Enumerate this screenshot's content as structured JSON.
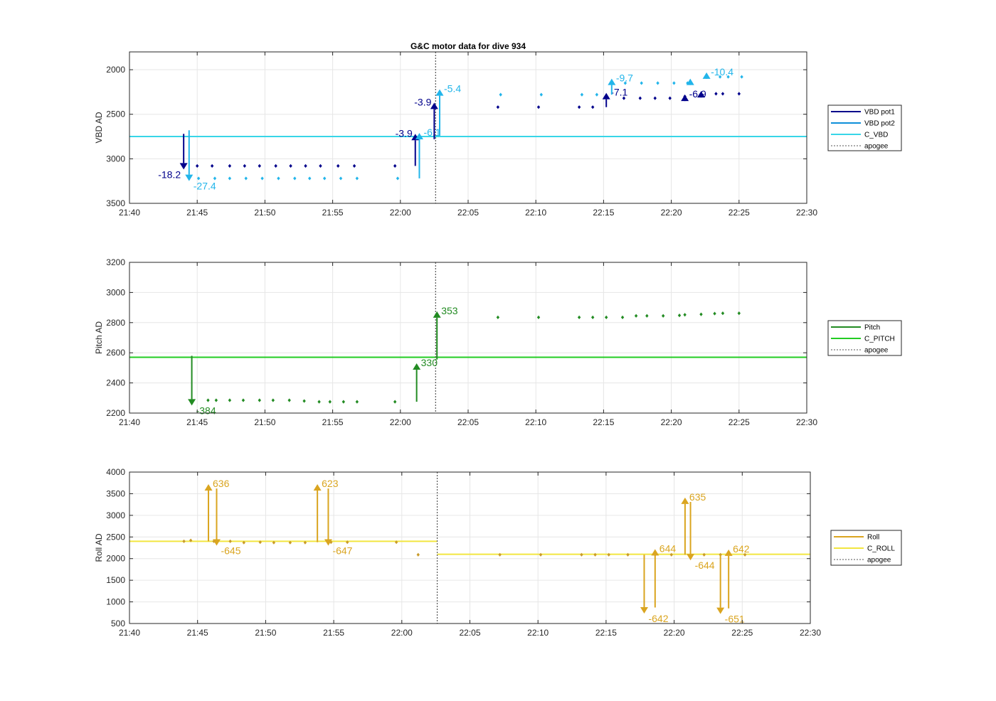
{
  "figure_title": "G&C motor data for dive 934",
  "chart_data": [
    {
      "type": "scatter",
      "name": "vbd",
      "ylabel": "VBD AD",
      "xlim": [
        "21:40",
        "22:30"
      ],
      "ylim": [
        3500,
        1800
      ],
      "y_reversed": true,
      "xticks": [
        "21:40",
        "21:45",
        "21:50",
        "21:55",
        "22:00",
        "22:05",
        "22:10",
        "22:15",
        "22:20",
        "22:25",
        "22:30"
      ],
      "yticks": [
        "2000",
        "2500",
        "3000",
        "3500"
      ],
      "grid": true,
      "legend_position": "right",
      "legend": [
        {
          "label": "VBD pot1",
          "color": "#00008B",
          "style": "solid"
        },
        {
          "label": "VBD pot2",
          "color": "#0E8FD9",
          "style": "solid"
        },
        {
          "label": "C_VBD",
          "color": "#38D6E8",
          "style": "solid"
        },
        {
          "label": "apogee",
          "color": "#555555",
          "style": "dotted"
        }
      ],
      "hlines": [
        {
          "name": "C_VBD",
          "segments": [
            {
              "x": [
                "21:40",
                "22:30"
              ],
              "y": 2750
            }
          ],
          "color": "#38D6E8"
        }
      ],
      "apogee": "22:02.6",
      "series": [
        {
          "name": "VBD pot1",
          "color": "#00008B",
          "x": [
            "21:45.0",
            "21:46.1",
            "21:47.4",
            "21:48.5",
            "21:49.6",
            "21:50.8",
            "21:51.9",
            "21:53.0",
            "21:54.1",
            "21:55.4",
            "21:56.6",
            "21:59.6",
            "22:07.2",
            "22:10.2",
            "22:13.2",
            "22:14.2",
            "22:16.5",
            "22:17.7",
            "22:18.8",
            "22:19.9",
            "22:21.0",
            "22:22.2",
            "22:23.3",
            "22:23.8",
            "22:25.0"
          ],
          "y": [
            3080,
            3080,
            3080,
            3080,
            3080,
            3080,
            3080,
            3080,
            3080,
            3080,
            3080,
            3080,
            2420,
            2420,
            2420,
            2420,
            2320,
            2320,
            2320,
            2320,
            2300,
            2290,
            2270,
            2270,
            2270
          ]
        },
        {
          "name": "VBD pot2",
          "color": "#22B5EA",
          "x": [
            "21:45.1",
            "21:46.3",
            "21:47.4",
            "21:48.6",
            "21:49.8",
            "21:51.0",
            "21:52.2",
            "21:53.3",
            "21:54.4",
            "21:55.6",
            "21:56.8",
            "21:59.8",
            "22:07.4",
            "22:10.4",
            "22:13.4",
            "22:14.5",
            "22:16.6",
            "22:17.8",
            "22:19.0",
            "22:20.2",
            "22:21.2",
            "22:23.6",
            "22:24.2",
            "22:25.2"
          ],
          "y": [
            3220,
            3220,
            3220,
            3220,
            3220,
            3220,
            3220,
            3220,
            3220,
            3220,
            3220,
            3220,
            2280,
            2280,
            2280,
            2280,
            2150,
            2150,
            2150,
            2150,
            2150,
            2080,
            2080,
            2080
          ]
        }
      ],
      "arrows": [
        {
          "x": "21:44.0",
          "from": 2720,
          "to": 3120,
          "label": "-18.2",
          "color": "#00008B"
        },
        {
          "x": "21:44.4",
          "from": 2680,
          "to": 3250,
          "label": "-27.4",
          "color": "#22B5EA"
        },
        {
          "x": "22:01.1",
          "from": 3080,
          "to": 2720,
          "label": "-3.9",
          "color": "#00008B"
        },
        {
          "x": "22:01.4",
          "from": 3220,
          "to": 2710,
          "label": "-6.1",
          "color": "#22B5EA"
        },
        {
          "x": "22:02.5",
          "from": 2780,
          "to": 2370,
          "label": "-3.9",
          "color": "#00008B"
        },
        {
          "x": "22:02.9",
          "from": 2740,
          "to": 2220,
          "label": "-5.4",
          "color": "#22B5EA"
        },
        {
          "x": "22:15.2",
          "from": 2420,
          "to": 2260,
          "label": "-7.1",
          "color": "#00008B"
        },
        {
          "x": "22:15.6",
          "from": 2280,
          "to": 2100,
          "label": "-9.7",
          "color": "#22B5EA"
        },
        {
          "x": "22:21.0",
          "from": 2330,
          "to": 2280,
          "label": "-6.9",
          "color": "#00008B"
        },
        {
          "x": "22:21.4",
          "from": 2150,
          "to": 2100,
          "label": "",
          "color": "#22B5EA"
        },
        {
          "x": "22:22.2",
          "from": 2290,
          "to": 2240,
          "label": "",
          "color": "#00008B"
        },
        {
          "x": "22:22.6",
          "from": 2090,
          "to": 2030,
          "label": "-10.4",
          "color": "#22B5EA"
        }
      ]
    },
    {
      "type": "scatter",
      "name": "pitch",
      "ylabel": "Pitch AD",
      "xlim": [
        "21:40",
        "22:30"
      ],
      "ylim": [
        2200,
        3200
      ],
      "xticks": [
        "21:40",
        "21:45",
        "21:50",
        "21:55",
        "22:00",
        "22:05",
        "22:10",
        "22:15",
        "22:20",
        "22:25",
        "22:30"
      ],
      "yticks": [
        "2200",
        "2400",
        "2600",
        "2800",
        "3000",
        "3200"
      ],
      "grid": true,
      "legend_position": "right",
      "legend": [
        {
          "label": "Pitch",
          "color": "#228B22",
          "style": "solid"
        },
        {
          "label": "C_PITCH",
          "color": "#22CC22",
          "style": "solid"
        },
        {
          "label": "apogee",
          "color": "#555555",
          "style": "dotted"
        }
      ],
      "hlines": [
        {
          "name": "C_PITCH",
          "segments": [
            {
              "x": [
                "21:40",
                "22:30"
              ],
              "y": 2570
            }
          ],
          "color": "#22CC22"
        }
      ],
      "apogee": "22:02.6",
      "series": [
        {
          "name": "Pitch",
          "color": "#228B22",
          "x": [
            "21:45.8",
            "21:46.4",
            "21:47.4",
            "21:48.4",
            "21:49.6",
            "21:50.6",
            "21:51.8",
            "21:52.9",
            "21:54.0",
            "21:54.8",
            "21:55.8",
            "21:56.8",
            "21:59.6",
            "22:07.2",
            "22:10.2",
            "22:13.2",
            "22:14.2",
            "22:15.2",
            "22:16.4",
            "22:17.4",
            "22:18.2",
            "22:19.4",
            "22:20.6",
            "22:21.0",
            "22:22.2",
            "22:23.2",
            "22:23.8",
            "22:25.0"
          ],
          "y": [
            2285,
            2285,
            2285,
            2285,
            2285,
            2285,
            2285,
            2280,
            2275,
            2275,
            2275,
            2275,
            2275,
            2835,
            2835,
            2835,
            2835,
            2835,
            2835,
            2845,
            2845,
            2845,
            2848,
            2852,
            2855,
            2860,
            2862,
            2862
          ]
        }
      ],
      "arrows": [
        {
          "x": "21:44.6",
          "from": 2580,
          "to": 2250,
          "label": "-384",
          "color": "#228B22"
        },
        {
          "x": "22:01.2",
          "from": 2275,
          "to": 2530,
          "label": "330",
          "color": "#228B22"
        },
        {
          "x": "22:02.7",
          "from": 2555,
          "to": 2875,
          "label": "353",
          "color": "#228B22"
        }
      ]
    },
    {
      "type": "scatter",
      "name": "roll",
      "ylabel": "Roll AD",
      "xlim": [
        "21:40",
        "22:30"
      ],
      "ylim": [
        500,
        4000
      ],
      "xticks": [
        "21:40",
        "21:45",
        "21:50",
        "21:55",
        "22:00",
        "22:05",
        "22:10",
        "22:15",
        "22:20",
        "22:25",
        "22:30"
      ],
      "yticks": [
        "500",
        "1000",
        "1500",
        "2000",
        "2500",
        "3000",
        "3500",
        "4000"
      ],
      "grid": true,
      "legend_position": "right",
      "legend": [
        {
          "label": "Roll",
          "color": "#DAA520",
          "style": "solid"
        },
        {
          "label": "C_ROLL",
          "color": "#F2E640",
          "style": "solid"
        },
        {
          "label": "apogee",
          "color": "#555555",
          "style": "dotted"
        }
      ],
      "hlines": [
        {
          "name": "C_ROLL",
          "segments": [
            {
              "x": [
                "21:40",
                "22:02.6"
              ],
              "y": 2400
            },
            {
              "x": [
                "22:02.6",
                "22:30"
              ],
              "y": 2100
            }
          ],
          "color": "#F2E640"
        }
      ],
      "apogee": "22:02.6",
      "series": [
        {
          "name": "Roll",
          "color": "#C99B2A",
          "x": [
            "21:44.0",
            "21:44.5",
            "21:46.2",
            "21:47.4",
            "21:48.4",
            "21:49.6",
            "21:50.6",
            "21:51.8",
            "21:52.9",
            "21:54.8",
            "21:56.0",
            "21:59.6",
            "22:01.2",
            "22:07.2",
            "22:10.2",
            "22:13.2",
            "22:14.2",
            "22:15.2",
            "22:16.6",
            "22:18.6",
            "22:19.8",
            "22:22.2",
            "22:23.4",
            "22:25.2"
          ],
          "y": [
            2400,
            2420,
            2400,
            2400,
            2370,
            2380,
            2370,
            2370,
            2370,
            2380,
            2380,
            2380,
            2090,
            2090,
            2090,
            2090,
            2090,
            2090,
            2090,
            2090,
            2090,
            2090,
            2090,
            2090
          ]
        }
      ],
      "arrows": [
        {
          "x": "21:45.8",
          "from": 2400,
          "to": 3720,
          "label": "636",
          "color": "#DAA520"
        },
        {
          "x": "21:46.4",
          "from": 3620,
          "to": 2300,
          "label": "-645",
          "color": "#DAA520"
        },
        {
          "x": "21:53.8",
          "from": 2380,
          "to": 3720,
          "label": "623",
          "color": "#DAA520"
        },
        {
          "x": "21:54.6",
          "from": 3620,
          "to": 2300,
          "label": "-647",
          "color": "#DAA520"
        },
        {
          "x": "22:17.8",
          "from": 2090,
          "to": 730,
          "label": "-642",
          "color": "#DAA520"
        },
        {
          "x": "22:18.6",
          "from": 870,
          "to": 2220,
          "label": "644",
          "color": "#DAA520"
        },
        {
          "x": "22:20.8",
          "from": 2090,
          "to": 3410,
          "label": "635",
          "color": "#DAA520"
        },
        {
          "x": "22:21.2",
          "from": 3310,
          "to": 1960,
          "label": "-644",
          "color": "#DAA520"
        },
        {
          "x": "22:23.4",
          "from": 2090,
          "to": 720,
          "label": "-651",
          "color": "#DAA520"
        },
        {
          "x": "22:24.0",
          "from": 850,
          "to": 2210,
          "label": "642",
          "color": "#DAA520"
        }
      ]
    }
  ]
}
